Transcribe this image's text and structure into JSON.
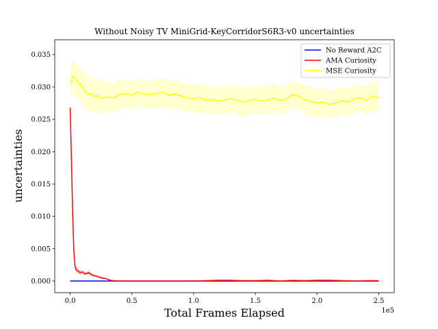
{
  "chart_data": {
    "type": "line",
    "title": "Without Noisy TV MiniGrid-KeyCorridorS6R3-v0 uncertainties",
    "xlabel": "Total Frames Elapsed",
    "ylabel": "uncertainties",
    "x_offset_label": "1e5",
    "xlim": [
      -12500,
      262500
    ],
    "ylim": [
      -0.0018,
      0.0373
    ],
    "xticks": [
      0,
      50000,
      100000,
      150000,
      200000,
      250000
    ],
    "xtick_labels": [
      "0.0",
      "0.5",
      "1.0",
      "1.5",
      "2.0",
      "2.5"
    ],
    "yticks": [
      0.0,
      0.005,
      0.01,
      0.015,
      0.02,
      0.025,
      0.03,
      0.035
    ],
    "ytick_labels": [
      "0.000",
      "0.005",
      "0.010",
      "0.015",
      "0.020",
      "0.025",
      "0.030",
      "0.035"
    ],
    "legend_position": "top-right",
    "series": [
      {
        "name": "No Reward A2C",
        "color": "#0000ff",
        "band_color": "#8080ff",
        "x": [
          0,
          25000,
          50000,
          75000,
          100000,
          125000,
          150000,
          175000,
          200000,
          225000,
          250000
        ],
        "values": [
          0.0,
          0.0,
          0.0,
          0.0,
          0.0,
          0.0,
          0.0,
          0.0,
          0.0,
          0.0,
          0.0
        ],
        "band": [
          5e-05,
          5e-05,
          5e-05,
          5e-05,
          5e-05,
          5e-05,
          5e-05,
          5e-05,
          5e-05,
          5e-05,
          5e-05
        ]
      },
      {
        "name": "AMA Curiosity",
        "color": "#ff0000",
        "band_color": "#ffb0b0",
        "x": [
          0,
          1000,
          2000,
          3000,
          4000,
          5000,
          6000,
          8000,
          10000,
          12000,
          15000,
          18000,
          20000,
          22000,
          25000,
          28000,
          30000,
          33000,
          35000,
          40000,
          50000,
          60000,
          70000,
          80000,
          90000,
          100000,
          110000,
          120000,
          130000,
          140000,
          150000,
          160000,
          170000,
          180000,
          190000,
          200000,
          210000,
          220000,
          230000,
          240000,
          250000
        ],
        "values": [
          0.0268,
          0.019,
          0.0105,
          0.0045,
          0.0022,
          0.0017,
          0.0016,
          0.0013,
          0.0014,
          0.0011,
          0.0013,
          0.0009,
          0.0008,
          0.0007,
          0.0005,
          0.0004,
          0.0003,
          0.0001,
          5e-05,
          0.0,
          0.0,
          0.0,
          0.0,
          0.0,
          0.0,
          0.0,
          5e-05,
          0.0001,
          0.0001,
          5e-05,
          5e-05,
          0.0001,
          0.0,
          0.0001,
          5e-05,
          0.0001,
          0.0001,
          5e-05,
          0.0,
          5e-05,
          5e-05
        ],
        "band": [
          0.0003,
          0.0006,
          0.0008,
          0.0007,
          0.0006,
          0.0005,
          0.0005,
          0.0004,
          0.0003,
          0.0003,
          0.0003,
          0.0002,
          0.0002,
          0.0002,
          0.0002,
          0.0001,
          0.0001,
          0.0001,
          0.0001,
          0.0001,
          0.0001,
          0.0001,
          0.0001,
          0.0001,
          0.0001,
          0.0001,
          0.0001,
          0.0002,
          0.0002,
          0.0001,
          0.0001,
          0.0002,
          0.0001,
          0.0001,
          0.0001,
          0.0002,
          0.0002,
          0.0001,
          0.0001,
          0.0001,
          0.0001
        ]
      },
      {
        "name": "MSE Curiosity",
        "color": "#ffff00",
        "band_color": "#ffffb0",
        "x": [
          0,
          2500,
          5000,
          7500,
          10000,
          12500,
          15000,
          17500,
          20000,
          22500,
          25000,
          30000,
          35000,
          40000,
          45000,
          50000,
          55000,
          60000,
          65000,
          70000,
          75000,
          80000,
          85000,
          90000,
          95000,
          100000,
          105000,
          110000,
          115000,
          120000,
          125000,
          130000,
          135000,
          140000,
          145000,
          150000,
          155000,
          160000,
          165000,
          170000,
          175000,
          180000,
          185000,
          190000,
          195000,
          200000,
          205000,
          210000,
          215000,
          220000,
          225000,
          230000,
          235000,
          240000,
          245000,
          250000
        ],
        "values": [
          0.0305,
          0.0317,
          0.031,
          0.0305,
          0.03,
          0.0292,
          0.0288,
          0.029,
          0.0285,
          0.0287,
          0.0282,
          0.0285,
          0.0283,
          0.0288,
          0.029,
          0.0287,
          0.0292,
          0.0289,
          0.0288,
          0.029,
          0.0292,
          0.0287,
          0.0289,
          0.0286,
          0.0283,
          0.0282,
          0.0284,
          0.0279,
          0.0281,
          0.0278,
          0.028,
          0.0282,
          0.028,
          0.0276,
          0.0279,
          0.0281,
          0.0278,
          0.028,
          0.0283,
          0.0279,
          0.0281,
          0.0288,
          0.0286,
          0.028,
          0.0278,
          0.0275,
          0.0277,
          0.0273,
          0.0275,
          0.0279,
          0.0277,
          0.0281,
          0.0284,
          0.0279,
          0.0286,
          0.0283
        ],
        "band": [
          0.0025,
          0.0025,
          0.0025,
          0.0026,
          0.0026,
          0.0027,
          0.0027,
          0.0027,
          0.0026,
          0.0026,
          0.0025,
          0.0023,
          0.0022,
          0.0022,
          0.0022,
          0.0022,
          0.0021,
          0.0021,
          0.0021,
          0.0022,
          0.0022,
          0.0022,
          0.0022,
          0.0021,
          0.0021,
          0.0021,
          0.0022,
          0.0022,
          0.0021,
          0.0021,
          0.0021,
          0.0021,
          0.0022,
          0.0022,
          0.0022,
          0.0021,
          0.0021,
          0.0021,
          0.0022,
          0.0022,
          0.0021,
          0.0021,
          0.0021,
          0.0022,
          0.0022,
          0.0022,
          0.0022,
          0.0021,
          0.0021,
          0.0021,
          0.0021,
          0.0021,
          0.0021,
          0.0022,
          0.0022,
          0.0022
        ]
      }
    ]
  }
}
